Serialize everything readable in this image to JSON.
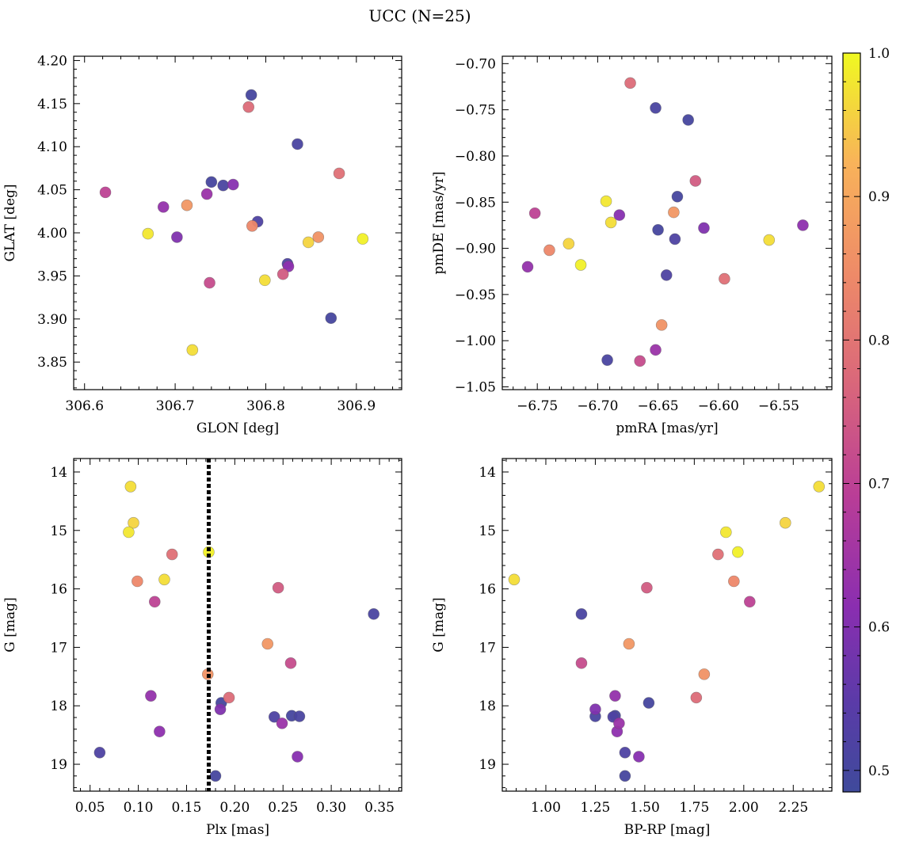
{
  "chart_data": {
    "title": "UCC (N=25)",
    "colorbar": {
      "colormap": "plasma",
      "range": [
        0.485,
        1.0
      ],
      "ticks": [
        0.5,
        0.6,
        0.7,
        0.8,
        0.9,
        1.0
      ],
      "tick_labels": [
        "0.5",
        "0.6",
        "0.7",
        "0.8",
        "0.9",
        "1.0"
      ]
    },
    "stars": [
      {
        "glon": 306.623,
        "glat": 4.047,
        "pmra": -6.752,
        "pmde": -0.862,
        "plx": 0.117,
        "g": 16.22,
        "bprp": 2.03,
        "p": 0.7
      },
      {
        "glon": 306.67,
        "glat": 3.999,
        "pmra": -6.693,
        "pmde": -0.849,
        "plx": 0.09,
        "g": 15.03,
        "bprp": 1.91,
        "p": 0.98
      },
      {
        "glon": 306.687,
        "glat": 4.03,
        "pmra": -6.758,
        "pmde": -0.92,
        "plx": 0.113,
        "g": 17.83,
        "bprp": 1.35,
        "p": 0.63
      },
      {
        "glon": 306.702,
        "glat": 3.995,
        "pmra": -6.612,
        "pmde": -0.878,
        "plx": 0.185,
        "g": 18.06,
        "bprp": 1.25,
        "p": 0.6
      },
      {
        "glon": 306.713,
        "glat": 4.032,
        "pmra": -6.637,
        "pmde": -0.861,
        "plx": 0.234,
        "g": 16.94,
        "bprp": 1.42,
        "p": 0.87
      },
      {
        "glon": 306.719,
        "glat": 3.864,
        "pmra": -6.689,
        "pmde": -0.872,
        "plx": 0.092,
        "g": 14.25,
        "bprp": 2.38,
        "p": 0.97
      },
      {
        "glon": 306.735,
        "glat": 4.045,
        "pmra": -6.652,
        "pmde": -1.01,
        "plx": 0.249,
        "g": 18.3,
        "bprp": 1.37,
        "p": 0.64
      },
      {
        "glon": 306.738,
        "glat": 3.942,
        "pmra": -6.665,
        "pmde": -1.022,
        "plx": 0.258,
        "g": 17.27,
        "bprp": 1.18,
        "p": 0.72
      },
      {
        "glon": 306.74,
        "glat": 4.059,
        "pmra": -6.625,
        "pmde": -0.761,
        "plx": 0.18,
        "g": 19.2,
        "bprp": 1.4,
        "p": 0.5
      },
      {
        "glon": 306.753,
        "glat": 4.055,
        "pmra": -6.652,
        "pmde": -0.748,
        "plx": 0.267,
        "g": 18.18,
        "bprp": 1.25,
        "p": 0.51
      },
      {
        "glon": 306.764,
        "glat": 4.056,
        "pmra": -6.682,
        "pmde": -0.864,
        "plx": 0.265,
        "g": 18.87,
        "bprp": 1.47,
        "p": 0.61
      },
      {
        "glon": 306.781,
        "glat": 4.146,
        "pmra": -6.673,
        "pmde": -0.721,
        "plx": 0.194,
        "g": 17.86,
        "bprp": 1.76,
        "p": 0.78
      },
      {
        "glon": 306.784,
        "glat": 4.16,
        "pmra": -6.634,
        "pmde": -0.844,
        "plx": 0.186,
        "g": 17.95,
        "bprp": 1.52,
        "p": 0.5
      },
      {
        "glon": 306.785,
        "glat": 4.008,
        "pmra": -6.74,
        "pmde": -0.902,
        "plx": 0.099,
        "g": 15.87,
        "bprp": 1.95,
        "p": 0.84
      },
      {
        "glon": 306.791,
        "glat": 4.013,
        "pmra": -6.636,
        "pmde": -0.89,
        "plx": 0.241,
        "g": 18.19,
        "bprp": 1.34,
        "p": 0.52
      },
      {
        "glon": 306.799,
        "glat": 3.945,
        "pmra": -6.558,
        "pmde": -0.891,
        "plx": 0.127,
        "g": 15.84,
        "bprp": 0.84,
        "p": 0.97
      },
      {
        "glon": 306.819,
        "glat": 3.952,
        "pmra": -6.619,
        "pmde": -0.827,
        "plx": 0.245,
        "g": 15.98,
        "bprp": 1.51,
        "p": 0.75
      },
      {
        "glon": 306.824,
        "glat": 3.964,
        "pmra": -6.643,
        "pmde": -0.929,
        "plx": 0.06,
        "g": 18.8,
        "bprp": 1.4,
        "p": 0.52
      },
      {
        "glon": 306.825,
        "glat": 3.961,
        "pmra": -6.53,
        "pmde": -0.875,
        "plx": 0.122,
        "g": 18.44,
        "bprp": 1.36,
        "p": 0.62
      },
      {
        "glon": 306.835,
        "glat": 4.103,
        "pmra": -6.692,
        "pmde": -1.021,
        "plx": 0.344,
        "g": 16.43,
        "bprp": 1.18,
        "p": 0.51
      },
      {
        "glon": 306.847,
        "glat": 3.989,
        "pmra": -6.724,
        "pmde": -0.895,
        "plx": 0.095,
        "g": 14.87,
        "bprp": 2.21,
        "p": 0.96
      },
      {
        "glon": 306.858,
        "glat": 3.995,
        "pmra": -6.647,
        "pmde": -0.983,
        "plx": 0.172,
        "g": 17.46,
        "bprp": 1.8,
        "p": 0.86
      },
      {
        "glon": 306.872,
        "glat": 3.901,
        "pmra": -6.65,
        "pmde": -0.88,
        "plx": 0.259,
        "g": 18.17,
        "bprp": 1.35,
        "p": 0.5
      },
      {
        "glon": 306.881,
        "glat": 4.069,
        "pmra": -6.595,
        "pmde": -0.933,
        "plx": 0.135,
        "g": 15.41,
        "bprp": 1.87,
        "p": 0.79
      },
      {
        "glon": 306.907,
        "glat": 3.993,
        "pmra": -6.714,
        "pmde": -0.918,
        "plx": 0.173,
        "g": 15.37,
        "bprp": 1.97,
        "p": 0.99
      }
    ],
    "panels": [
      {
        "id": "glon-glat",
        "type": "scatter",
        "x": "glon",
        "y": "glat",
        "xlabel": "GLON [deg]",
        "ylabel": "GLAT [deg]",
        "xlim": [
          306.588,
          306.95
        ],
        "ylim": [
          3.818,
          4.205
        ],
        "y_inverted": false,
        "xticks": [
          306.6,
          306.7,
          306.8,
          306.9
        ],
        "xtick_labels": [
          "306.6",
          "306.7",
          "306.8",
          "306.9"
        ],
        "yticks": [
          3.85,
          3.9,
          3.95,
          4.0,
          4.05,
          4.1,
          4.15,
          4.2
        ],
        "ytick_labels": [
          "3.85",
          "3.90",
          "3.95",
          "4.00",
          "4.05",
          "4.10",
          "4.15",
          "4.20"
        ]
      },
      {
        "id": "pmra-pmde",
        "type": "scatter",
        "x": "pmra",
        "y": "pmde",
        "xlabel": "pmRA [mas/yr]",
        "ylabel": "pmDE [mas/yr]",
        "xlim": [
          -6.779,
          -6.506
        ],
        "ylim": [
          -1.053,
          -0.692
        ],
        "y_inverted": false,
        "xticks": [
          -6.75,
          -6.7,
          -6.65,
          -6.6,
          -6.55
        ],
        "xtick_labels": [
          "−6.75",
          "−6.70",
          "−6.65",
          "−6.60",
          "−6.55"
        ],
        "yticks": [
          -1.05,
          -1.0,
          -0.95,
          -0.9,
          -0.85,
          -0.8,
          -0.75,
          -0.7
        ],
        "ytick_labels": [
          "−1.05",
          "−1.00",
          "−0.95",
          "−0.90",
          "−0.85",
          "−0.80",
          "−0.75",
          "−0.70"
        ]
      },
      {
        "id": "plx-g",
        "type": "scatter",
        "x": "plx",
        "y": "g",
        "xlabel": "Plx [mas]",
        "ylabel": "G [mag]",
        "xlim": [
          0.033,
          0.373
        ],
        "ylim": [
          19.46,
          13.77
        ],
        "y_inverted": true,
        "xticks": [
          0.05,
          0.1,
          0.15,
          0.2,
          0.25,
          0.3,
          0.35
        ],
        "xtick_labels": [
          "0.05",
          "0.10",
          "0.15",
          "0.20",
          "0.25",
          "0.30",
          "0.35"
        ],
        "yticks": [
          14,
          15,
          16,
          17,
          18,
          19
        ],
        "ytick_labels": [
          "14",
          "15",
          "16",
          "17",
          "18",
          "19"
        ],
        "vline": {
          "x": 0.173,
          "style": "dotted"
        }
      },
      {
        "id": "bprp-g",
        "type": "scatter",
        "x": "bprp",
        "y": "g",
        "xlabel": "BP-RP [mag]",
        "ylabel": "G [mag]",
        "xlim": [
          0.78,
          2.445
        ],
        "ylim": [
          19.46,
          13.77
        ],
        "y_inverted": true,
        "xticks": [
          1.0,
          1.25,
          1.5,
          1.75,
          2.0,
          2.25
        ],
        "xtick_labels": [
          "1.00",
          "1.25",
          "1.50",
          "1.75",
          "2.00",
          "2.25"
        ],
        "yticks": [
          14,
          15,
          16,
          17,
          18,
          19
        ],
        "ytick_labels": [
          "14",
          "15",
          "16",
          "17",
          "18",
          "19"
        ]
      }
    ]
  }
}
